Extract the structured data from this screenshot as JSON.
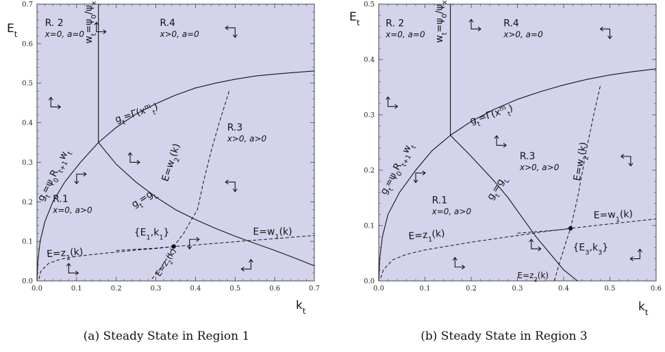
{
  "colors": {
    "panel_fill": "#d4d3ec",
    "frame": "#444444",
    "curve": "#111111"
  },
  "chart_data": [
    {
      "type": "phase-diagram",
      "caption": "(a) Steady State in Region 1",
      "xlabel": "k",
      "xlabel_sub": "t",
      "ylabel": "E",
      "ylabel_sub": "t",
      "xlim": [
        0,
        0.7
      ],
      "ylim": [
        0,
        0.7
      ],
      "xticks": [
        "0.0",
        "0.1",
        "0.2",
        "0.3",
        "0.4",
        "0.5",
        "0.6",
        "0.7"
      ],
      "yticks": [
        "0.0",
        "0.1",
        "0.2",
        "0.3",
        "0.4",
        "0.5",
        "0.6",
        "0.7"
      ],
      "regions": [
        {
          "title": "R. 2",
          "cond": "x=0, a=0",
          "x": 0.02,
          "y": 0.645
        },
        {
          "title": "R.4",
          "cond": "x>0, a=0",
          "x": 0.31,
          "y": 0.645
        },
        {
          "title": "R.3",
          "cond": "x>0, a>0",
          "x": 0.48,
          "y": 0.38
        },
        {
          "title": "R.1",
          "cond": "x=0, a>0",
          "x": 0.04,
          "y": 0.2
        }
      ],
      "curve_labels": [
        {
          "key": "wt",
          "text": "w",
          "sub": "t",
          "rest": "=ψ",
          "sub2": "0",
          "rest2": "/ψ",
          "sub3": "x",
          "x": 0.138,
          "y": 0.6,
          "rot": -90
        },
        {
          "key": "gamma",
          "text": "g",
          "sub": "t",
          "rest": "=Γ(x",
          "sub2": "t",
          "sup2": "m",
          "rest2": ")",
          "x": 0.2,
          "y": 0.4,
          "rot": -18
        },
        {
          "key": "psi0R",
          "text": "g",
          "sub": "t",
          "rest": "=ψ",
          "sub2": "0",
          "rest2": "R",
          "sub3": "t+1",
          "rest3": "w",
          "sub4": "t",
          "x": 0.015,
          "y": 0.2,
          "rot": -63
        },
        {
          "key": "gL",
          "text": "g",
          "sub": "t",
          "rest": "=g",
          "sub2": "L",
          "x": 0.245,
          "y": 0.185,
          "rot": -32
        },
        {
          "key": "w2",
          "text": "E=w",
          "sub": "2",
          "rest": "(k)",
          "x": 0.33,
          "y": 0.25,
          "rot": -72
        },
        {
          "key": "w1",
          "text": "E=w",
          "sub": "1",
          "rest": "(k)",
          "x": 0.545,
          "y": 0.117,
          "rot": 0
        },
        {
          "key": "z1",
          "text": "E=z",
          "sub": "1",
          "rest": "(k)",
          "x": 0.025,
          "y": 0.06,
          "rot": -4
        },
        {
          "key": "z2",
          "text": "E=z",
          "sub": "2",
          "rest": "(k)",
          "x": 0.31,
          "y": 0.01,
          "rot": -58,
          "small": true
        }
      ],
      "steady_state_label": {
        "text": "{E",
        "sub": "1",
        "rest": ",k",
        "sub2": "1",
        "rest2": "}",
        "x": 0.245,
        "y": 0.115
      },
      "steady_state": {
        "k": 0.345,
        "E": 0.087
      },
      "series": {
        "wt_line": [
          [
            0.155,
            0.35
          ],
          [
            0.155,
            0.7
          ]
        ],
        "psi0R": [
          [
            0.0,
            0.0
          ],
          [
            0.002,
            0.05
          ],
          [
            0.008,
            0.1
          ],
          [
            0.02,
            0.15
          ],
          [
            0.04,
            0.2
          ],
          [
            0.07,
            0.25
          ],
          [
            0.11,
            0.3
          ],
          [
            0.155,
            0.35
          ]
        ],
        "gamma": [
          [
            0.155,
            0.35
          ],
          [
            0.2,
            0.388
          ],
          [
            0.25,
            0.422
          ],
          [
            0.3,
            0.448
          ],
          [
            0.35,
            0.47
          ],
          [
            0.4,
            0.488
          ],
          [
            0.45,
            0.5
          ],
          [
            0.5,
            0.51
          ],
          [
            0.55,
            0.518
          ],
          [
            0.6,
            0.523
          ],
          [
            0.65,
            0.527
          ],
          [
            0.7,
            0.531
          ]
        ],
        "gL": [
          [
            0.155,
            0.35
          ],
          [
            0.2,
            0.295
          ],
          [
            0.25,
            0.25
          ],
          [
            0.3,
            0.212
          ],
          [
            0.35,
            0.18
          ],
          [
            0.4,
            0.155
          ],
          [
            0.45,
            0.133
          ],
          [
            0.5,
            0.113
          ],
          [
            0.55,
            0.095
          ],
          [
            0.6,
            0.077
          ],
          [
            0.65,
            0.058
          ],
          [
            0.7,
            0.038
          ]
        ],
        "w2": [
          [
            0.29,
            0.005
          ],
          [
            0.31,
            0.03
          ],
          [
            0.33,
            0.06
          ],
          [
            0.345,
            0.087
          ],
          [
            0.37,
            0.12
          ],
          [
            0.39,
            0.155
          ],
          [
            0.405,
            0.18
          ],
          [
            0.42,
            0.25
          ],
          [
            0.44,
            0.33
          ],
          [
            0.46,
            0.4
          ],
          [
            0.485,
            0.48
          ]
        ],
        "w1": [
          [
            0.2,
            0.077
          ],
          [
            0.3,
            0.083
          ],
          [
            0.345,
            0.087
          ],
          [
            0.4,
            0.091
          ],
          [
            0.5,
            0.099
          ],
          [
            0.6,
            0.107
          ],
          [
            0.7,
            0.115
          ]
        ],
        "z1": [
          [
            0.005,
            0.005
          ],
          [
            0.01,
            0.025
          ],
          [
            0.03,
            0.045
          ],
          [
            0.06,
            0.055
          ],
          [
            0.1,
            0.062
          ],
          [
            0.15,
            0.068
          ],
          [
            0.2,
            0.073
          ],
          [
            0.25,
            0.078
          ],
          [
            0.3,
            0.082
          ],
          [
            0.345,
            0.087
          ]
        ]
      },
      "flow_arrows": [
        {
          "x": 0.15,
          "y": 0.63,
          "dx": 1,
          "dy": 1
        },
        {
          "x": 0.035,
          "y": 0.44,
          "dx": 1,
          "dy": 1
        },
        {
          "x": 0.5,
          "y": 0.64,
          "dx": -1,
          "dy": -1
        },
        {
          "x": 0.1,
          "y": 0.27,
          "dx": 1,
          "dy": -1
        },
        {
          "x": 0.235,
          "y": 0.3,
          "dx": 1,
          "dy": 1
        },
        {
          "x": 0.5,
          "y": 0.25,
          "dx": -1,
          "dy": -1
        },
        {
          "x": 0.385,
          "y": 0.105,
          "dx": 1,
          "dy": -1
        },
        {
          "x": 0.08,
          "y": 0.02,
          "dx": 1,
          "dy": 1
        },
        {
          "x": 0.54,
          "y": 0.03,
          "dx": -1,
          "dy": 1
        }
      ]
    },
    {
      "type": "phase-diagram",
      "caption": "(b) Steady State in Region 3",
      "xlabel": "k",
      "xlabel_sub": "t",
      "ylabel": "E",
      "ylabel_sub": "t",
      "xlim": [
        0,
        0.6
      ],
      "ylim": [
        0,
        0.5
      ],
      "xticks": [
        "0.0",
        "0.1",
        "0.2",
        "0.3",
        "0.4",
        "0.5",
        "0.6"
      ],
      "yticks": [
        "0.0",
        "0.1",
        "0.2",
        "0.3",
        "0.4",
        "0.5"
      ],
      "regions": [
        {
          "title": "R. 2",
          "cond": "x=0, a=0",
          "x": 0.015,
          "y": 0.46
        },
        {
          "title": "R.4",
          "cond": "x>0, a=0",
          "x": 0.27,
          "y": 0.46
        },
        {
          "title": "R.3",
          "cond": "x>0, a>0",
          "x": 0.305,
          "y": 0.22
        },
        {
          "title": "R.1",
          "cond": "x=0, a>0",
          "x": 0.115,
          "y": 0.14
        }
      ],
      "curve_labels": [
        {
          "key": "wt",
          "text": "w",
          "sub": "t",
          "rest": "=ψ",
          "sub2": "0",
          "rest2": "/ψ",
          "sub3": "x",
          "x": 0.138,
          "y": 0.43,
          "rot": -90
        },
        {
          "key": "gamma",
          "text": "g",
          "sub": "t",
          "rest": "=Γ(x",
          "sub2": "t",
          "sup2": "m",
          "rest2": ")",
          "x": 0.2,
          "y": 0.283,
          "rot": -18
        },
        {
          "key": "psi0R",
          "text": "g",
          "sub": "t",
          "rest": "=ψ",
          "sub2": "0",
          "rest2": "R",
          "sub3": "t+1",
          "rest3": "w",
          "sub4": "t",
          "x": 0.015,
          "y": 0.155,
          "rot": -62
        },
        {
          "key": "gL",
          "text": "g",
          "sub": "t",
          "rest": "=g",
          "sub2": "L",
          "x": 0.245,
          "y": 0.145,
          "rot": -58
        },
        {
          "key": "w2",
          "text": "E=w",
          "sub": "2",
          "rest": "(k)",
          "x": 0.435,
          "y": 0.18,
          "rot": -80
        },
        {
          "key": "w1",
          "text": "E=w",
          "sub": "1",
          "rest": "(k)",
          "x": 0.465,
          "y": 0.113,
          "rot": -2
        },
        {
          "key": "z1",
          "text": "E=z",
          "sub": "1",
          "rest": "(k)",
          "x": 0.065,
          "y": 0.075,
          "rot": -5
        },
        {
          "key": "z2",
          "text": "E=z",
          "sub": "2",
          "rest": "(k)",
          "x": 0.3,
          "y": 0.005,
          "rot": 0,
          "small": true
        }
      ],
      "steady_state_label": {
        "text": "{E",
        "sub": "3",
        "rest": ",k",
        "sub2": "3",
        "rest2": "}",
        "x": 0.42,
        "y": 0.055
      },
      "steady_state": {
        "k": 0.415,
        "E": 0.095
      },
      "series": {
        "wt_line": [
          [
            0.155,
            0.263
          ],
          [
            0.155,
            0.5
          ]
        ],
        "psi0R": [
          [
            0.0,
            0.0
          ],
          [
            0.002,
            0.04
          ],
          [
            0.008,
            0.08
          ],
          [
            0.02,
            0.12
          ],
          [
            0.045,
            0.16
          ],
          [
            0.08,
            0.2
          ],
          [
            0.115,
            0.235
          ],
          [
            0.155,
            0.263
          ]
        ],
        "gamma": [
          [
            0.155,
            0.263
          ],
          [
            0.2,
            0.288
          ],
          [
            0.25,
            0.31
          ],
          [
            0.3,
            0.328
          ],
          [
            0.35,
            0.342
          ],
          [
            0.4,
            0.354
          ],
          [
            0.45,
            0.364
          ],
          [
            0.5,
            0.372
          ],
          [
            0.55,
            0.378
          ],
          [
            0.6,
            0.383
          ]
        ],
        "gL": [
          [
            0.155,
            0.263
          ],
          [
            0.2,
            0.225
          ],
          [
            0.25,
            0.18
          ],
          [
            0.28,
            0.15
          ],
          [
            0.31,
            0.115
          ],
          [
            0.34,
            0.08
          ],
          [
            0.37,
            0.05
          ],
          [
            0.4,
            0.02
          ],
          [
            0.43,
            0.0
          ]
        ],
        "w2": [
          [
            0.38,
            0.0
          ],
          [
            0.39,
            0.03
          ],
          [
            0.405,
            0.07
          ],
          [
            0.415,
            0.095
          ],
          [
            0.43,
            0.15
          ],
          [
            0.45,
            0.24
          ],
          [
            0.465,
            0.3
          ],
          [
            0.48,
            0.355
          ]
        ],
        "w1": [
          [
            0.3,
            0.086
          ],
          [
            0.4,
            0.093
          ],
          [
            0.415,
            0.095
          ],
          [
            0.5,
            0.103
          ],
          [
            0.6,
            0.112
          ]
        ],
        "z1": [
          [
            0.004,
            0.005
          ],
          [
            0.01,
            0.02
          ],
          [
            0.03,
            0.038
          ],
          [
            0.06,
            0.048
          ],
          [
            0.1,
            0.056
          ],
          [
            0.15,
            0.063
          ],
          [
            0.2,
            0.07
          ],
          [
            0.25,
            0.076
          ],
          [
            0.3,
            0.082
          ],
          [
            0.35,
            0.088
          ],
          [
            0.415,
            0.095
          ]
        ]
      },
      "flow_arrows": [
        {
          "x": 0.2,
          "y": 0.455,
          "dx": 1,
          "dy": 1
        },
        {
          "x": 0.02,
          "y": 0.315,
          "dx": 1,
          "dy": 1
        },
        {
          "x": 0.5,
          "y": 0.455,
          "dx": -1,
          "dy": -1
        },
        {
          "x": 0.08,
          "y": 0.195,
          "dx": 1,
          "dy": -1
        },
        {
          "x": 0.255,
          "y": 0.245,
          "dx": 1,
          "dy": 1
        },
        {
          "x": 0.545,
          "y": 0.225,
          "dx": -1,
          "dy": -1
        },
        {
          "x": 0.33,
          "y": 0.058,
          "dx": 1,
          "dy": 1
        },
        {
          "x": 0.165,
          "y": 0.025,
          "dx": 1,
          "dy": 1
        },
        {
          "x": 0.565,
          "y": 0.04,
          "dx": -1,
          "dy": 1
        }
      ]
    }
  ]
}
